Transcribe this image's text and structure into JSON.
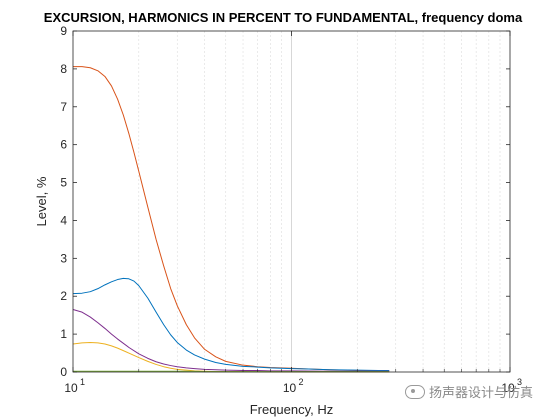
{
  "chart_data": {
    "type": "line",
    "title": "EXCURSION, HARMONICS IN PERCENT TO FUNDAMENTAL, frequency doma",
    "xlabel": "Frequency, Hz",
    "ylabel": "Level, %",
    "xscale": "log",
    "xlim": [
      10,
      1000
    ],
    "ylim": [
      0,
      9
    ],
    "grid": "x-only",
    "x_ticks": [
      "10",
      "10",
      "10"
    ],
    "x_tick_exponents": [
      "1",
      "2",
      "3"
    ],
    "y_ticks": [
      "0",
      "1",
      "2",
      "3",
      "4",
      "5",
      "6",
      "7",
      "8",
      "9"
    ],
    "series": [
      {
        "color": "#d95319",
        "x": [
          10,
          11,
          12,
          13,
          14,
          15,
          16,
          17,
          18,
          19,
          20,
          22,
          24,
          26,
          28,
          30,
          33,
          36,
          40,
          45,
          50,
          60,
          70,
          80,
          100,
          120,
          150,
          200,
          250,
          280
        ],
        "values": [
          8.06,
          8.06,
          8.03,
          7.95,
          7.8,
          7.55,
          7.2,
          6.78,
          6.3,
          5.8,
          5.3,
          4.35,
          3.5,
          2.8,
          2.2,
          1.75,
          1.25,
          0.9,
          0.6,
          0.4,
          0.28,
          0.18,
          0.14,
          0.12,
          0.1,
          0.08,
          0.06,
          0.04,
          0.03,
          0.03
        ]
      },
      {
        "color": "#0072bd",
        "x": [
          10,
          11,
          12,
          13,
          14,
          15,
          16,
          17,
          18,
          19,
          20,
          22,
          24,
          26,
          28,
          30,
          33,
          36,
          40,
          45,
          50,
          60,
          70,
          80,
          100,
          120,
          150,
          200,
          250,
          280
        ],
        "values": [
          2.07,
          2.08,
          2.12,
          2.2,
          2.3,
          2.38,
          2.44,
          2.47,
          2.46,
          2.4,
          2.28,
          1.95,
          1.58,
          1.25,
          0.98,
          0.78,
          0.58,
          0.45,
          0.34,
          0.25,
          0.2,
          0.15,
          0.13,
          0.11,
          0.09,
          0.08,
          0.06,
          0.05,
          0.04,
          0.04
        ]
      },
      {
        "color": "#7e2f8e",
        "x": [
          10,
          11,
          12,
          13,
          14,
          15,
          16,
          18,
          20,
          22,
          24,
          26,
          28,
          30,
          33,
          36,
          40,
          45,
          50,
          60,
          70,
          80,
          100,
          150,
          200,
          280
        ],
        "values": [
          1.65,
          1.58,
          1.45,
          1.3,
          1.15,
          1.0,
          0.87,
          0.65,
          0.48,
          0.36,
          0.27,
          0.21,
          0.17,
          0.14,
          0.11,
          0.09,
          0.07,
          0.06,
          0.05,
          0.04,
          0.04,
          0.03,
          0.03,
          0.02,
          0.02,
          0.02
        ]
      },
      {
        "color": "#edb120",
        "x": [
          10,
          11,
          12,
          13,
          14,
          15,
          16,
          18,
          20,
          22,
          24,
          26,
          28,
          30,
          33,
          36,
          40,
          45,
          50,
          60,
          80,
          100,
          150,
          280
        ],
        "values": [
          0.74,
          0.77,
          0.78,
          0.77,
          0.74,
          0.69,
          0.63,
          0.5,
          0.38,
          0.28,
          0.2,
          0.14,
          0.1,
          0.07,
          0.05,
          0.03,
          0.02,
          0.01,
          0.01,
          0.01,
          0.0,
          0.0,
          0.0,
          0.0
        ]
      },
      {
        "color": "#77ac30",
        "x": [
          10,
          12,
          15,
          20,
          25,
          30,
          35,
          40,
          50,
          70,
          100,
          150,
          280
        ],
        "values": [
          0.02,
          0.02,
          0.02,
          0.02,
          0.02,
          0.02,
          0.02,
          0.01,
          0.01,
          0.01,
          0.01,
          0.01,
          0.01
        ]
      }
    ]
  },
  "watermark": {
    "text": "扬声器设计与仿真",
    "icon": "wechat-icon"
  }
}
